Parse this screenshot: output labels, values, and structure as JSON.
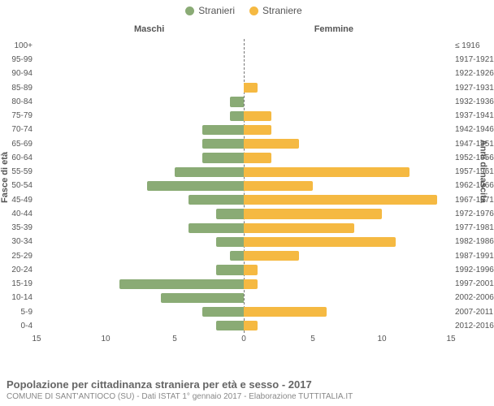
{
  "legend": {
    "male": {
      "label": "Stranieri",
      "color": "#8aab75"
    },
    "female": {
      "label": "Straniere",
      "color": "#f5b942"
    }
  },
  "headers": {
    "left": "Maschi",
    "right": "Femmine",
    "y_left": "Fasce di età",
    "y_right": "Anni di nascita"
  },
  "chart": {
    "type": "population-pyramid",
    "xlim": 15,
    "xticks": [
      15,
      10,
      5,
      0,
      5,
      10,
      15
    ],
    "bands": [
      {
        "age": "100+",
        "birth": "≤ 1916",
        "m": 0,
        "f": 0
      },
      {
        "age": "95-99",
        "birth": "1917-1921",
        "m": 0,
        "f": 0
      },
      {
        "age": "90-94",
        "birth": "1922-1926",
        "m": 0,
        "f": 0
      },
      {
        "age": "85-89",
        "birth": "1927-1931",
        "m": 0,
        "f": 1
      },
      {
        "age": "80-84",
        "birth": "1932-1936",
        "m": 1,
        "f": 0
      },
      {
        "age": "75-79",
        "birth": "1937-1941",
        "m": 1,
        "f": 2
      },
      {
        "age": "70-74",
        "birth": "1942-1946",
        "m": 3,
        "f": 2
      },
      {
        "age": "65-69",
        "birth": "1947-1951",
        "m": 3,
        "f": 4
      },
      {
        "age": "60-64",
        "birth": "1952-1956",
        "m": 3,
        "f": 2
      },
      {
        "age": "55-59",
        "birth": "1957-1961",
        "m": 5,
        "f": 12
      },
      {
        "age": "50-54",
        "birth": "1962-1966",
        "m": 7,
        "f": 5
      },
      {
        "age": "45-49",
        "birth": "1967-1971",
        "m": 4,
        "f": 14
      },
      {
        "age": "40-44",
        "birth": "1972-1976",
        "m": 2,
        "f": 10
      },
      {
        "age": "35-39",
        "birth": "1977-1981",
        "m": 4,
        "f": 8
      },
      {
        "age": "30-34",
        "birth": "1982-1986",
        "m": 2,
        "f": 11
      },
      {
        "age": "25-29",
        "birth": "1987-1991",
        "m": 1,
        "f": 4
      },
      {
        "age": "20-24",
        "birth": "1992-1996",
        "m": 2,
        "f": 1
      },
      {
        "age": "15-19",
        "birth": "1997-2001",
        "m": 9,
        "f": 1
      },
      {
        "age": "10-14",
        "birth": "2002-2006",
        "m": 6,
        "f": 0
      },
      {
        "age": "5-9",
        "birth": "2007-2011",
        "m": 3,
        "f": 6
      },
      {
        "age": "0-4",
        "birth": "2012-2016",
        "m": 2,
        "f": 1
      }
    ],
    "colors": {
      "male": "#8aab75",
      "female": "#f5b942",
      "centerline": "#777777",
      "background": "#ffffff",
      "text": "#555555"
    }
  },
  "caption": {
    "title": "Popolazione per cittadinanza straniera per età e sesso - 2017",
    "subtitle": "COMUNE DI SANT'ANTIOCO (SU) - Dati ISTAT 1° gennaio 2017 - Elaborazione TUTTITALIA.IT"
  }
}
